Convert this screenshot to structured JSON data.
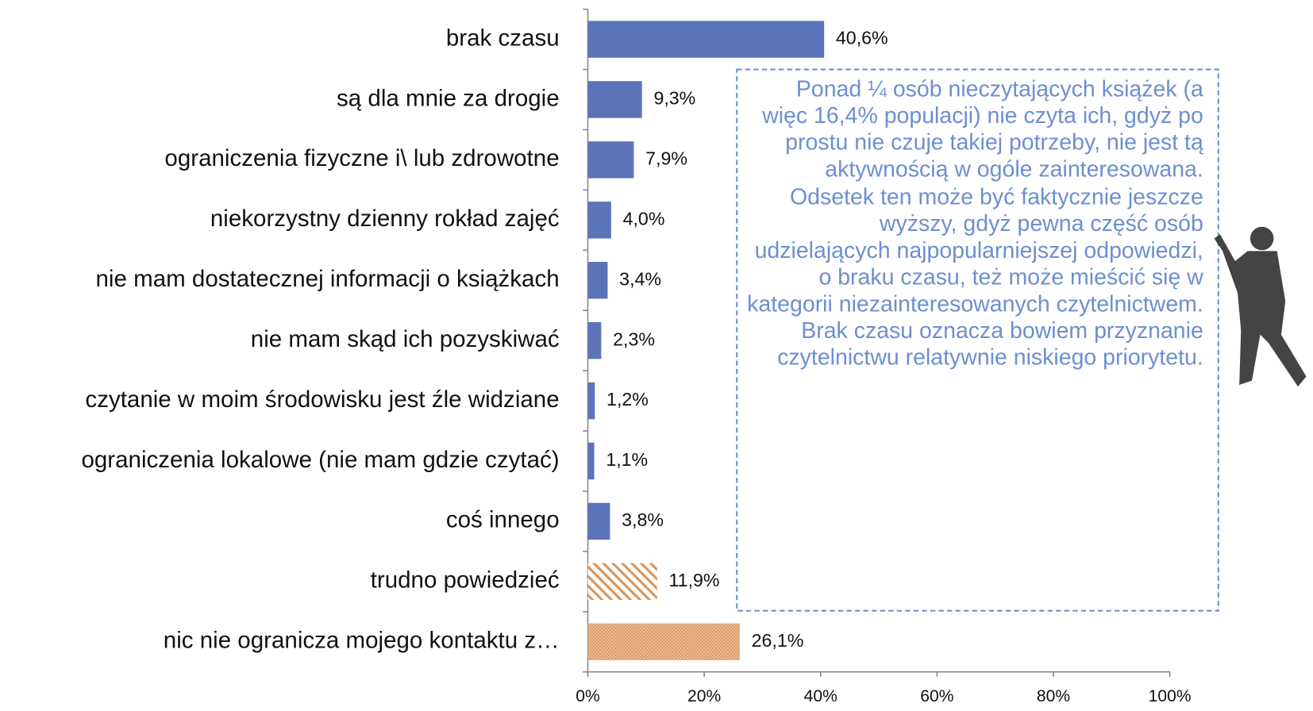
{
  "chart_data": {
    "type": "bar",
    "orientation": "horizontal",
    "categories": [
      "brak czasu",
      "są dla mnie za drogie",
      "ograniczenia fizyczne i\\ lub zdrowotne",
      "niekorzystny dzienny rokład zajęć",
      "nie mam dostatecznej informacji o książkach",
      "nie mam skąd ich pozyskiwać",
      "czytanie w moim środowisku jest źle widziane",
      "ograniczenia lokalowe (nie mam gdzie czytać)",
      "coś innego",
      "trudno powiedzieć",
      "nic nie ogranicza mojego kontaktu z…"
    ],
    "values": [
      40.6,
      9.3,
      7.9,
      4.0,
      3.4,
      2.3,
      1.2,
      1.1,
      3.8,
      11.9,
      26.1
    ],
    "value_labels": [
      "40,6%",
      "9,3%",
      "7,9%",
      "4,0%",
      "3,4%",
      "2,3%",
      "1,2%",
      "1,1%",
      "3,8%",
      "11,9%",
      "26,1%"
    ],
    "colors": [
      "#5b73b8",
      "#5b73b8",
      "#5b73b8",
      "#5b73b8",
      "#5b73b8",
      "#5b73b8",
      "#5b73b8",
      "#5b73b8",
      "#5b73b8",
      "#d9955a",
      "#d9955a"
    ],
    "patterns": [
      "solid",
      "solid",
      "solid",
      "solid",
      "solid",
      "solid",
      "solid",
      "solid",
      "solid",
      "diagonal",
      "dots"
    ],
    "xlim": [
      0,
      100
    ],
    "xticks": [
      {
        "value": 0,
        "label": "0%"
      },
      {
        "value": 20,
        "label": "20%"
      },
      {
        "value": 40,
        "label": "40%"
      },
      {
        "value": 60,
        "label": "60%"
      },
      {
        "value": 80,
        "label": "80%"
      },
      {
        "value": 100,
        "label": "100%"
      }
    ],
    "annotation": [
      "Ponad ¼ osób nieczytających książek (a więc 16,4% populacji) nie czyta ich, gdyż po prostu nie czuje takiej potrzeby, nie jest tą aktywnością w ogóle zainteresowana. Odsetek ten może być faktycznie jeszcze wyższy, gdyż pewna część osób udzielających najpopularniejszej odpowiedzi, o braku czasu, też może mieścić się w kategorii niezainteresowanych czytelnictwem.",
      "Brak czasu oznacza bowiem przyznanie czytelnictwu relatywnie niskiego priorytetu."
    ]
  }
}
